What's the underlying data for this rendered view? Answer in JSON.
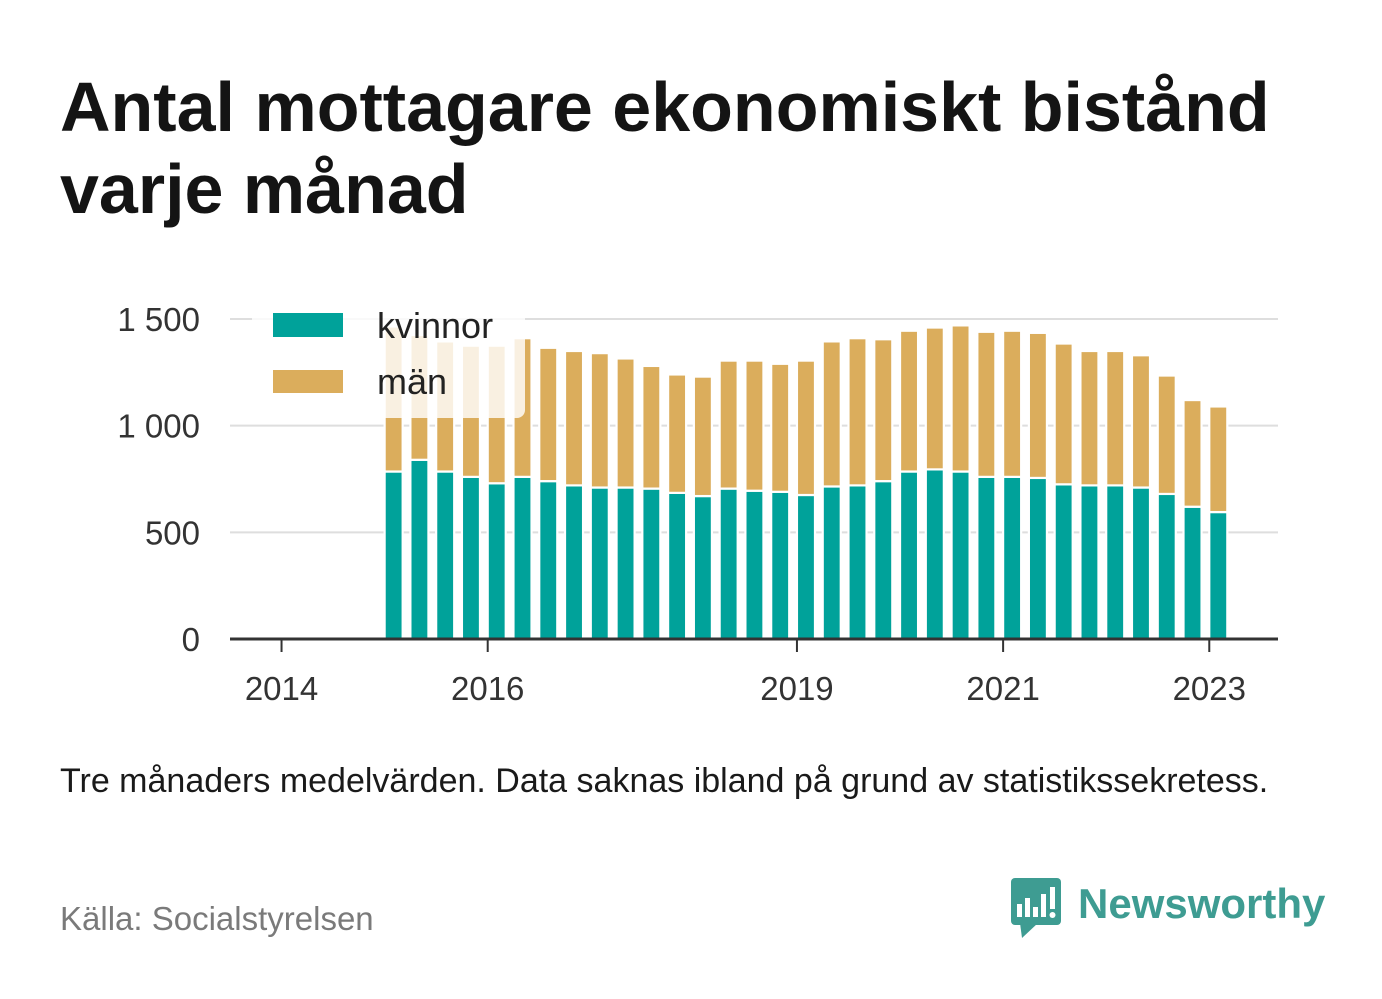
{
  "note": "Tre månaders medelvärden. Data saknas ibland på grund av statistikssekretess.",
  "source": "Källa: Socialstyrelsen",
  "brand": {
    "name": "Newsworthy",
    "icon": "newsworthy-logo-icon",
    "color": "#3e9c92"
  },
  "chart_data": {
    "type": "bar",
    "stacked": true,
    "title": "Antal mottagare ekonomiskt bistånd varje månad",
    "x": [
      "2015-01",
      "2015-04",
      "2015-07",
      "2015-10",
      "2016-01",
      "2016-04",
      "2016-07",
      "2016-10",
      "2017-01",
      "2017-04",
      "2017-07",
      "2017-10",
      "2018-01",
      "2018-04",
      "2018-07",
      "2018-10",
      "2019-01",
      "2019-04",
      "2019-07",
      "2019-10",
      "2020-01",
      "2020-04",
      "2020-07",
      "2020-10",
      "2021-01",
      "2021-04",
      "2021-07",
      "2021-10",
      "2022-01",
      "2022-04",
      "2022-07",
      "2022-10",
      "2023-01"
    ],
    "series": [
      {
        "name": "kvinnor",
        "color": "#00a29a",
        "values": [
          785,
          840,
          785,
          760,
          730,
          760,
          740,
          720,
          710,
          710,
          705,
          685,
          670,
          705,
          695,
          690,
          675,
          715,
          720,
          740,
          785,
          795,
          785,
          760,
          760,
          755,
          725,
          720,
          720,
          710,
          680,
          620,
          595
        ]
      },
      {
        "name": "män",
        "color": "#dbad5c",
        "values": [
          680,
          585,
          610,
          615,
          645,
          650,
          625,
          630,
          630,
          605,
          575,
          555,
          560,
          600,
          610,
          600,
          630,
          680,
          690,
          665,
          660,
          665,
          685,
          680,
          685,
          680,
          660,
          630,
          630,
          620,
          555,
          500,
          495
        ]
      }
    ],
    "xlim": [
      "2013-07",
      "2023-09"
    ],
    "x_ticks": [
      "2014",
      "2016",
      "2019",
      "2021",
      "2023"
    ],
    "ylim": [
      0,
      1500
    ],
    "y_ticks": [
      0,
      500,
      1000,
      1500
    ],
    "y_tick_labels": [
      "0",
      "500",
      "1 000",
      "1 500"
    ],
    "grid": true,
    "legend": "top-left"
  }
}
